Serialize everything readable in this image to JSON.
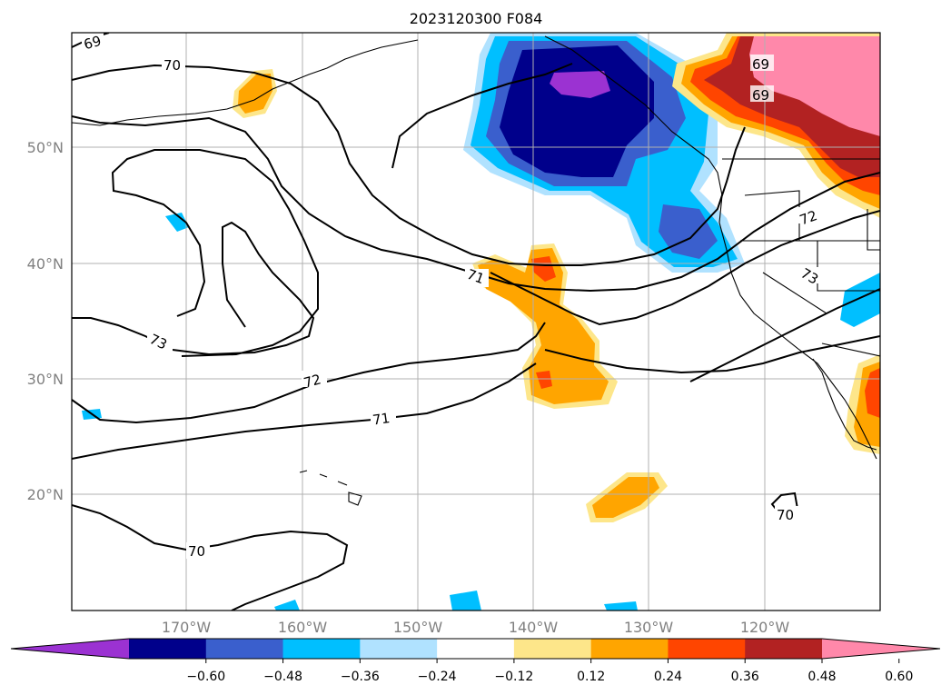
{
  "title": "2023120300 F084",
  "map": {
    "lat_range": [
      10,
      60
    ],
    "lon_range": [
      -180,
      -110
    ],
    "lat_ticks": [
      "50°N",
      "40°N",
      "30°N",
      "20°N"
    ],
    "lon_ticks": [
      "170°W",
      "160°W",
      "150°W",
      "140°W",
      "130°W",
      "120°W"
    ],
    "grid": true,
    "coastlines": true,
    "state_borders": true
  },
  "contour_labels": [
    "69",
    "70",
    "69",
    "69",
    "71",
    "72",
    "73",
    "73",
    "72",
    "71",
    "70",
    "70"
  ],
  "colorbar": {
    "ticks": [
      "−0.60",
      "−0.48",
      "−0.36",
      "−0.24",
      "−0.12",
      "0.12",
      "0.24",
      "0.36",
      "0.48",
      "0.60"
    ],
    "colors": [
      "#9b32d2",
      "#00008b",
      "#3a5fcd",
      "#00bfff",
      "#b0e2ff",
      "#ffffff",
      "#fde68a",
      "#ffa500",
      "#ff4500",
      "#b22222",
      "#ff88aa"
    ],
    "extend": "both"
  }
}
